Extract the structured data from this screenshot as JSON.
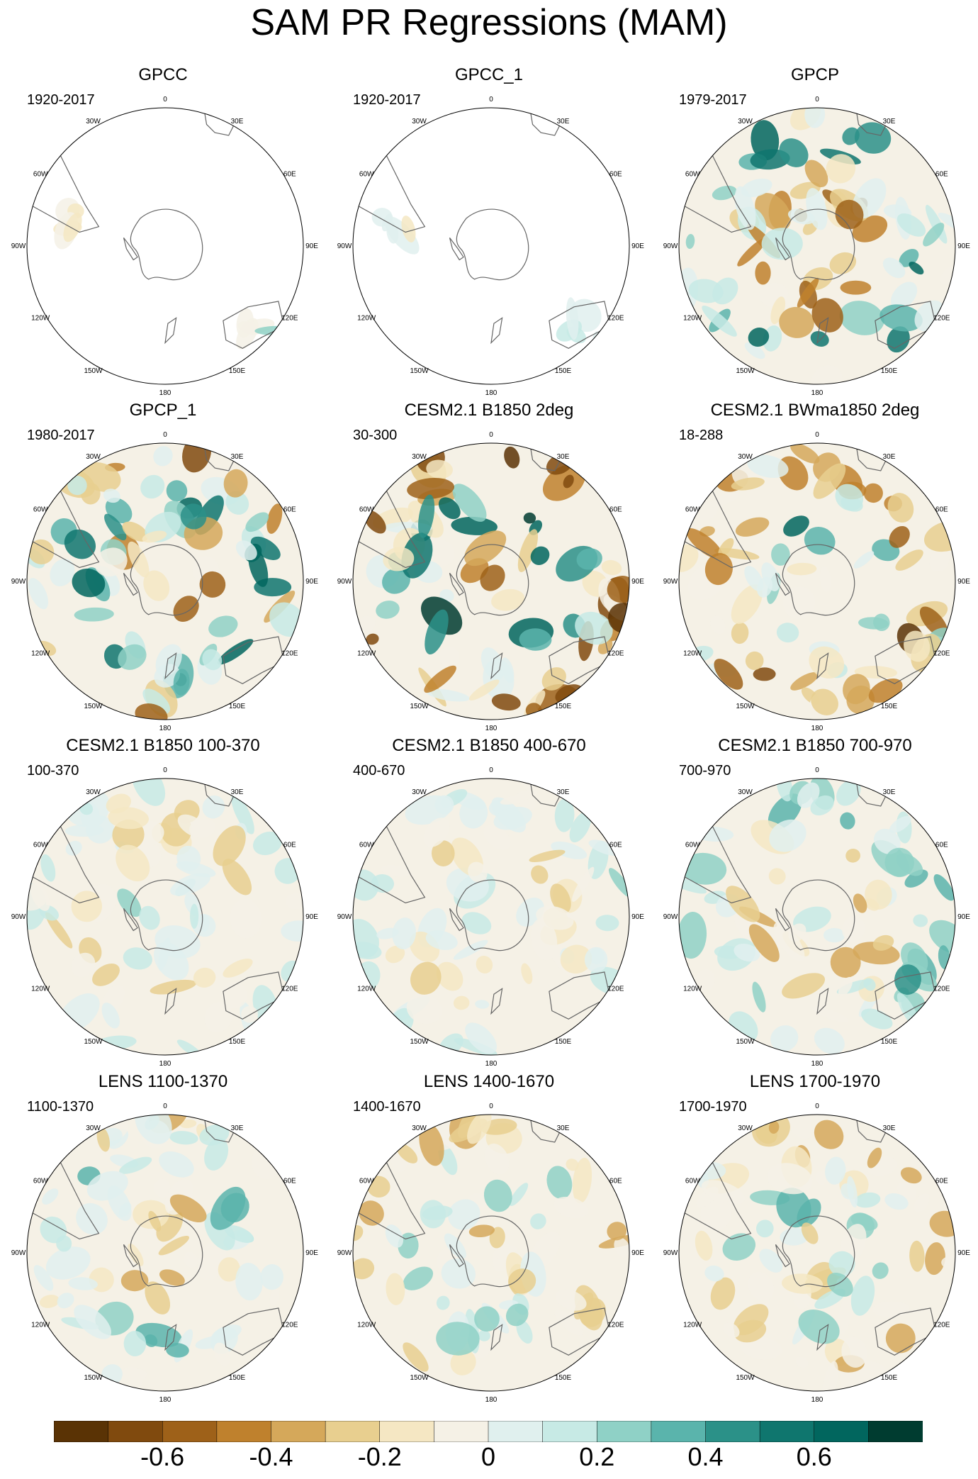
{
  "title": "SAM PR Regressions (MAM)",
  "chart_data": {
    "type": "heatmap",
    "projection": "south polar stereographic",
    "variable": "precipitation regression on SAM",
    "longitude_labels": [
      "0",
      "30E",
      "60E",
      "90E",
      "120E",
      "150E",
      "180",
      "150W",
      "120W",
      "90W",
      "60W",
      "30W"
    ],
    "panels": [
      {
        "title": "GPCC",
        "range": "1920-2017",
        "coverage": "land",
        "amplitude": 0.2
      },
      {
        "title": "GPCC_1",
        "range": "1920-2017",
        "coverage": "land",
        "amplitude": 0.15
      },
      {
        "title": "GPCP",
        "range": "1979-2017",
        "coverage": "full",
        "amplitude": 0.6
      },
      {
        "title": "GPCP_1",
        "range": "1980-2017",
        "coverage": "full",
        "amplitude": 0.65
      },
      {
        "title": "CESM2.1 B1850 2deg",
        "range": "30-300",
        "coverage": "full",
        "amplitude": 0.7
      },
      {
        "title": "CESM2.1 BWma1850 2deg",
        "range": "18-288",
        "coverage": "full",
        "amplitude": 0.6
      },
      {
        "title": "CESM2.1 B1850 100-370",
        "range": "100-370",
        "coverage": "full",
        "amplitude": 0.25
      },
      {
        "title": "CESM2.1 B1850 400-670",
        "range": "400-670",
        "coverage": "full",
        "amplitude": 0.22
      },
      {
        "title": "CESM2.1 B1850 700-970",
        "range": "700-970",
        "coverage": "full",
        "amplitude": 0.35
      },
      {
        "title": "LENS 1100-1370",
        "range": "1100-1370",
        "coverage": "full",
        "amplitude": 0.35
      },
      {
        "title": "LENS 1400-1670",
        "range": "1400-1670",
        "coverage": "full",
        "amplitude": 0.35
      },
      {
        "title": "LENS 1700-1970",
        "range": "1700-1970",
        "coverage": "full",
        "amplitude": 0.35
      }
    ],
    "colorbar": {
      "levels": [
        -0.7,
        -0.6,
        -0.5,
        -0.4,
        -0.3,
        -0.2,
        -0.1,
        0,
        0.1,
        0.2,
        0.3,
        0.4,
        0.5,
        0.6,
        0.7
      ],
      "tick_labels": [
        "-0.6",
        "-0.4",
        "-0.2",
        "0",
        "0.2",
        "0.4",
        "0.6"
      ],
      "tick_values": [
        -0.6,
        -0.4,
        -0.2,
        0,
        0.2,
        0.4,
        0.6
      ],
      "colors": [
        "#5a3305",
        "#804a0e",
        "#9e6119",
        "#bf812d",
        "#d5a85a",
        "#e8cf8f",
        "#f5e7c3",
        "#f5f1e6",
        "#e0f0ee",
        "#c7eae5",
        "#8fd1c6",
        "#5ab4ac",
        "#2b9188",
        "#0f766e",
        "#01665e",
        "#003c30"
      ]
    },
    "land_color": "#f5f1e6",
    "coast_color": "#666666"
  }
}
